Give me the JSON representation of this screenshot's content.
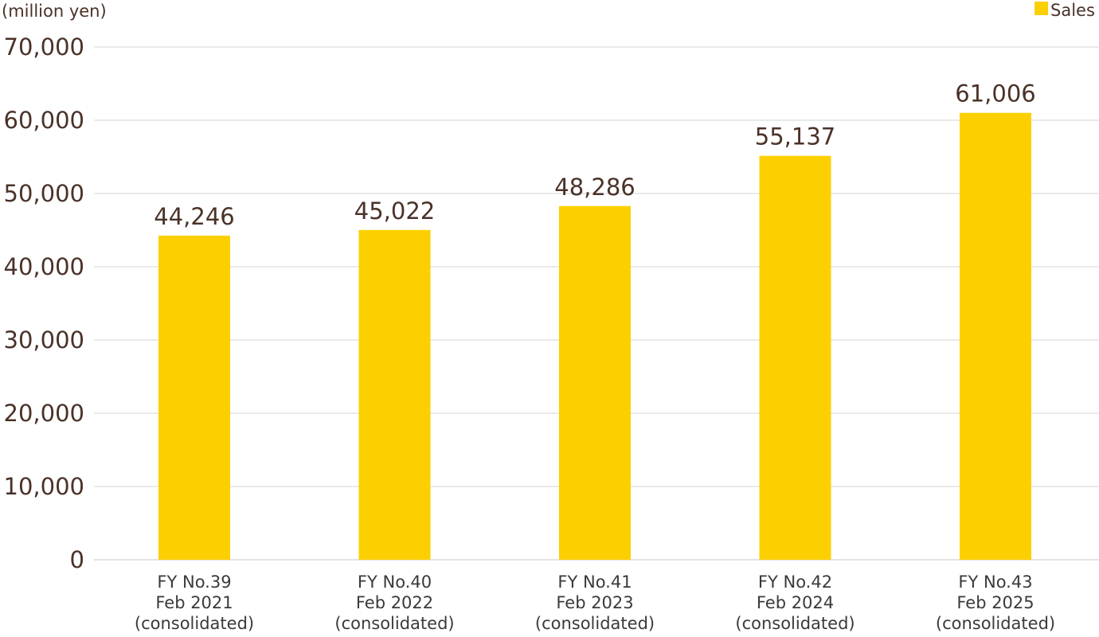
{
  "chart_data": {
    "type": "bar",
    "unit_label": "(million yen)",
    "categories": [
      [
        "FY No.39",
        "Feb 2021",
        "(consolidated)"
      ],
      [
        "FY No.40",
        "Feb 2022",
        "(consolidated)"
      ],
      [
        "FY No.41",
        "Feb 2023",
        "(consolidated)"
      ],
      [
        "FY No.42",
        "Feb 2024",
        "(consolidated)"
      ],
      [
        "FY No.43",
        "Feb 2025",
        "(consolidated)"
      ]
    ],
    "series": [
      {
        "name": "Sales",
        "color": "#FCD000",
        "values": [
          44246,
          45022,
          48286,
          55137,
          61006
        ],
        "labels": [
          "44,246",
          "45,022",
          "48,286",
          "55,137",
          "61,006"
        ]
      }
    ],
    "ylim": [
      0,
      70000
    ],
    "yticks": [
      0,
      10000,
      20000,
      30000,
      40000,
      50000,
      60000,
      70000
    ],
    "ytick_labels": [
      "0",
      "10,000",
      "20,000",
      "30,000",
      "40,000",
      "50,000",
      "60,000",
      "70,000"
    ],
    "grid": true,
    "legend_position": "top-right"
  }
}
